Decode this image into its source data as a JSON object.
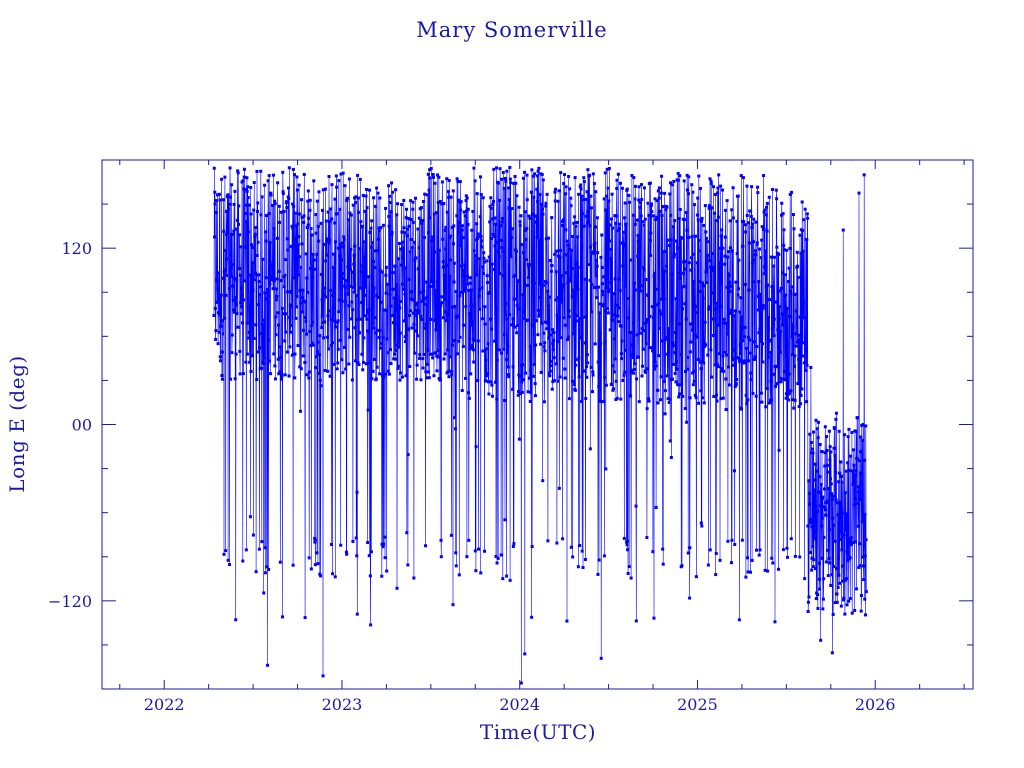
{
  "chart_data": {
    "type": "scatter",
    "title": "Mary Somerville",
    "xlabel": "Time(UTC)",
    "ylabel": "Long E (deg)",
    "x_ticks": [
      "2022",
      "2023",
      "2024",
      "2025",
      "2026"
    ],
    "y_ticks": [
      "−120",
      "00",
      "120"
    ],
    "x_tick_values": [
      2022,
      2023,
      2024,
      2025,
      2026
    ],
    "y_tick_values": [
      -120,
      0,
      120
    ],
    "xlim": [
      2021.65,
      2026.55
    ],
    "ylim": [
      -180,
      180
    ],
    "grid": false,
    "connect_points": true,
    "data_range": [
      2022.28,
      2025.95
    ],
    "series": [
      {
        "values_description": "",
        "color": "#0000ff"
      }
    ],
    "dense_clusters": [
      {
        "x": [
          2022.28,
          2023.05
        ],
        "y": [
          30,
          175
        ]
      },
      {
        "x": [
          2023.15,
          2023.45
        ],
        "y": [
          30,
          165
        ]
      },
      {
        "x": [
          2023.65,
          2024.6
        ],
        "y": [
          15,
          175
        ]
      },
      {
        "x": [
          2024.55,
          2024.95
        ],
        "y": [
          10,
          170
        ]
      },
      {
        "x": [
          2024.95,
          2025.35
        ],
        "y": [
          10,
          170
        ]
      },
      {
        "x": [
          2025.35,
          2025.62
        ],
        "y": [
          10,
          160
        ]
      },
      {
        "x": [
          2025.62,
          2025.95
        ],
        "y": [
          -130,
          5
        ]
      }
    ],
    "sparse_band": {
      "y_center": -90,
      "y_spread": 15
    },
    "colors": {
      "axis": "#1a1aa6",
      "data": "#0000ff",
      "background": "#ffffff"
    }
  }
}
